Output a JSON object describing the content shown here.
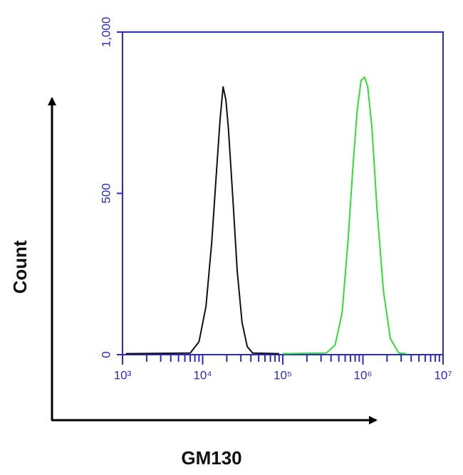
{
  "chart_data": {
    "type": "line",
    "x_label": "GM130",
    "y_label": "Count",
    "xscale": "log",
    "xlim": [
      1000,
      10000000
    ],
    "xticks": [
      {
        "value": 1000,
        "label": "10³"
      },
      {
        "value": 10000,
        "label": "10⁴"
      },
      {
        "value": 100000,
        "label": "10⁵"
      },
      {
        "value": 1000000,
        "label": "10⁶"
      },
      {
        "value": 10000000,
        "label": "10⁷"
      }
    ],
    "ylim": [
      0,
      1000
    ],
    "yticks": [
      0,
      500,
      {
        "value": 1000,
        "label": "1,000"
      }
    ],
    "axis_color": "#2a2acf",
    "series": [
      {
        "color": "#111111",
        "x": [
          1100,
          7000,
          9000,
          11000,
          13000,
          15000,
          16500,
          18000,
          19500,
          21000,
          24000,
          27000,
          31000,
          36000,
          42000,
          90000
        ],
        "values": [
          3,
          5,
          40,
          150,
          350,
          580,
          730,
          830,
          790,
          700,
          470,
          260,
          100,
          25,
          5,
          3
        ]
      },
      {
        "color": "#33dd33",
        "x": [
          100000,
          350000,
          450000,
          550000,
          650000,
          750000,
          850000,
          950000,
          1050000,
          1150000,
          1300000,
          1500000,
          1800000,
          2200000,
          2800000,
          3500000
        ],
        "values": [
          3,
          5,
          30,
          130,
          350,
          580,
          760,
          850,
          860,
          830,
          700,
          450,
          200,
          50,
          5,
          3
        ]
      }
    ]
  }
}
